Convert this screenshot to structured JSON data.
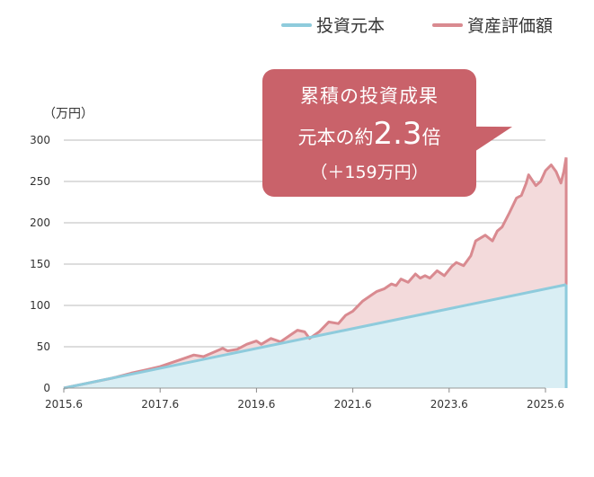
{
  "legend": {
    "principal": "投資元本",
    "valuation": "資産評価額"
  },
  "unit_label": "（万円）",
  "callout": {
    "line1": "累積の投資成果",
    "line2_prefix": "元本の約",
    "multiplier": "2.3",
    "line2_suffix": "倍",
    "line3": "（＋159万円）"
  },
  "colors": {
    "principal_line": "#8ecbdc",
    "principal_fill": "#d9eef4",
    "valuation_line": "#d98a90",
    "valuation_fill": "#f3dadb",
    "callout_bg": "#c9626a",
    "grid": "#bbbbbb"
  },
  "chart_data": {
    "type": "area",
    "x_ticks": [
      "2015.6",
      "2017.6",
      "2019.6",
      "2021.6",
      "2023.6",
      "2025.6"
    ],
    "y_ticks": [
      0,
      50,
      100,
      150,
      200,
      250,
      300
    ],
    "ylim": [
      0,
      300
    ],
    "x_range": [
      2015.5,
      2025.5
    ],
    "grid": "horizontal",
    "legend_position": "top-right",
    "series": [
      {
        "name": "投資元本",
        "points": [
          [
            2015.5,
            0
          ],
          [
            2025.5,
            120
          ]
        ]
      },
      {
        "name": "資産評価額",
        "points": [
          [
            2015.5,
            0
          ],
          [
            2016.0,
            6
          ],
          [
            2016.5,
            12
          ],
          [
            2016.9,
            18
          ],
          [
            2017.2,
            22
          ],
          [
            2017.5,
            26
          ],
          [
            2017.8,
            32
          ],
          [
            2018.0,
            36
          ],
          [
            2018.2,
            40
          ],
          [
            2018.4,
            38
          ],
          [
            2018.6,
            43
          ],
          [
            2018.8,
            48
          ],
          [
            2018.9,
            45
          ],
          [
            2019.1,
            47
          ],
          [
            2019.3,
            53
          ],
          [
            2019.5,
            57
          ],
          [
            2019.6,
            53
          ],
          [
            2019.8,
            60
          ],
          [
            2020.0,
            56
          ],
          [
            2020.2,
            64
          ],
          [
            2020.35,
            70
          ],
          [
            2020.5,
            68
          ],
          [
            2020.6,
            60
          ],
          [
            2020.8,
            68
          ],
          [
            2021.0,
            80
          ],
          [
            2021.2,
            78
          ],
          [
            2021.35,
            88
          ],
          [
            2021.5,
            93
          ],
          [
            2021.7,
            105
          ],
          [
            2021.9,
            113
          ],
          [
            2022.0,
            117
          ],
          [
            2022.15,
            120
          ],
          [
            2022.3,
            126
          ],
          [
            2022.4,
            124
          ],
          [
            2022.5,
            132
          ],
          [
            2022.65,
            128
          ],
          [
            2022.8,
            138
          ],
          [
            2022.9,
            133
          ],
          [
            2023.0,
            136
          ],
          [
            2023.1,
            133
          ],
          [
            2023.25,
            142
          ],
          [
            2023.4,
            136
          ],
          [
            2023.55,
            147
          ],
          [
            2023.65,
            152
          ],
          [
            2023.8,
            148
          ],
          [
            2023.95,
            160
          ],
          [
            2024.05,
            178
          ],
          [
            2024.25,
            185
          ],
          [
            2024.4,
            178
          ],
          [
            2024.5,
            190
          ],
          [
            2024.6,
            195
          ],
          [
            2024.75,
            212
          ],
          [
            2024.9,
            230
          ],
          [
            2025.0,
            233
          ],
          [
            2025.1,
            248
          ],
          [
            2025.15,
            258
          ],
          [
            2025.3,
            245
          ],
          [
            2025.4,
            250
          ],
          [
            2025.5,
            263
          ],
          [
            2025.62,
            270
          ],
          [
            2025.72,
            262
          ],
          [
            2025.82,
            248
          ],
          [
            2025.88,
            262
          ],
          [
            2025.93,
            279
          ]
        ]
      }
    ]
  }
}
